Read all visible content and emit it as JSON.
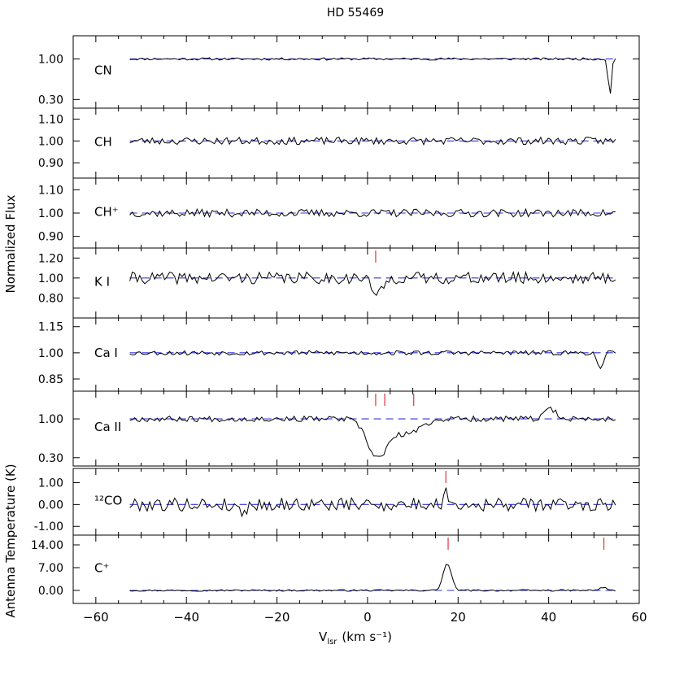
{
  "figure": {
    "title": "HD 55469",
    "xlabel": "V",
    "xlabel_sub": "lsr",
    "xlabel_units": "(km s⁻¹)",
    "ylabel_top": "Normalized Flux",
    "ylabel_bottom": "Antenna Temperature (K)"
  },
  "colors": {
    "trace": "#000000",
    "model": "#3333dd",
    "marker": "#e0363a",
    "axis": "#000000"
  },
  "chart_data": [
    {
      "type": "line",
      "label": "CN",
      "xlim": [
        -65,
        60
      ],
      "ylim": [
        0.15,
        1.4
      ],
      "yticks": [
        {
          "v": 0.3,
          "t": "0.30"
        },
        {
          "v": 1.0,
          "t": "1.00"
        }
      ],
      "baseline": 1.0,
      "noise": 0.012,
      "seed": 11,
      "features": [
        {
          "center": 53.5,
          "depth": 0.64,
          "width": 0.35
        }
      ],
      "markers": []
    },
    {
      "type": "line",
      "label": "CH",
      "xlim": [
        -65,
        60
      ],
      "ylim": [
        0.83,
        1.15
      ],
      "yticks": [
        {
          "v": 0.9,
          "t": "0.90"
        },
        {
          "v": 1.0,
          "t": "1.00"
        },
        {
          "v": 1.1,
          "t": "1.10"
        }
      ],
      "baseline": 1.0,
      "noise": 0.01,
      "seed": 23,
      "features": [],
      "markers": []
    },
    {
      "type": "line",
      "label": "CH⁺",
      "xlim": [
        -65,
        60
      ],
      "ylim": [
        0.85,
        1.15
      ],
      "yticks": [
        {
          "v": 0.9,
          "t": "0.90"
        },
        {
          "v": 1.0,
          "t": "1.00"
        },
        {
          "v": 1.1,
          "t": "1.10"
        }
      ],
      "baseline": 1.0,
      "noise": 0.01,
      "seed": 37,
      "features": [],
      "markers": []
    },
    {
      "type": "line",
      "label": "K I",
      "xlim": [
        -65,
        60
      ],
      "ylim": [
        0.6,
        1.3
      ],
      "yticks": [
        {
          "v": 0.8,
          "t": "0.80"
        },
        {
          "v": 1.0,
          "t": "1.00"
        },
        {
          "v": 1.2,
          "t": "1.20"
        }
      ],
      "baseline": 1.0,
      "noise": 0.035,
      "seed": 41,
      "features": [
        {
          "center": 2.3,
          "depth": 0.17,
          "width": 1.2
        }
      ],
      "markers": [
        1.8
      ]
    },
    {
      "type": "line",
      "label": "Ca I",
      "xlim": [
        -65,
        60
      ],
      "ylim": [
        0.78,
        1.2
      ],
      "yticks": [
        {
          "v": 0.85,
          "t": "0.85"
        },
        {
          "v": 1.0,
          "t": "1.00"
        },
        {
          "v": 1.15,
          "t": "1.15"
        }
      ],
      "baseline": 1.0,
      "noise": 0.008,
      "seed": 53,
      "features": [
        {
          "center": 51.5,
          "depth": 0.1,
          "width": 0.6
        }
      ],
      "markers": []
    },
    {
      "type": "line",
      "label": "Ca II",
      "xlim": [
        -65,
        60
      ],
      "ylim": [
        0.15,
        1.5
      ],
      "yticks": [
        {
          "v": 0.3,
          "t": "0.30"
        },
        {
          "v": 1.0,
          "t": "1.00"
        }
      ],
      "baseline": 1.0,
      "noise": 0.03,
      "seed": 67,
      "features": [
        {
          "center": 2.0,
          "depth": 0.6,
          "width": 2.2
        },
        {
          "center": 6.0,
          "depth": 0.18,
          "width": 3.5
        },
        {
          "center": 10.0,
          "depth": 0.15,
          "width": 2.5
        },
        {
          "center": 40.5,
          "depth": -0.18,
          "width": 1.2
        }
      ],
      "markers": [
        1.8,
        3.8,
        10.2
      ]
    },
    {
      "type": "line",
      "label": "¹²CO",
      "xlim": [
        -65,
        60
      ],
      "ylim": [
        -1.4,
        1.65
      ],
      "yticks": [
        {
          "v": -1.0,
          "t": "-1.00"
        },
        {
          "v": 0.0,
          "t": "0.00"
        },
        {
          "v": 1.0,
          "t": "1.00"
        }
      ],
      "baseline": 0.0,
      "noise": 0.18,
      "seed": 79,
      "features": [
        {
          "center": 17.5,
          "depth": -0.55,
          "width": 0.6
        },
        {
          "center": -28.0,
          "depth": 0.3,
          "width": 1.2
        }
      ],
      "markers": [
        17.3
      ]
    },
    {
      "type": "line",
      "label": "C⁺",
      "xlim": [
        -65,
        60
      ],
      "ylim": [
        -4.0,
        17.0
      ],
      "yticks": [
        {
          "v": 0.0,
          "t": "0.00"
        },
        {
          "v": 7.0,
          "t": "7.00"
        },
        {
          "v": 14.0,
          "t": "14.00"
        }
      ],
      "xticks": [
        {
          "v": -60,
          "t": "−60"
        },
        {
          "v": -40,
          "t": "−40"
        },
        {
          "v": -20,
          "t": "−20"
        },
        {
          "v": 0,
          "t": "0"
        },
        {
          "v": 20,
          "t": "20"
        },
        {
          "v": 40,
          "t": "40"
        },
        {
          "v": 60,
          "t": "60"
        }
      ],
      "baseline": 0.0,
      "noise": 0.15,
      "seed": 97,
      "features": [
        {
          "center": 17.6,
          "depth": -8.3,
          "width": 0.9
        },
        {
          "center": 52.0,
          "depth": -0.9,
          "width": 0.8
        }
      ],
      "markers": [
        17.8,
        52.2
      ]
    }
  ]
}
